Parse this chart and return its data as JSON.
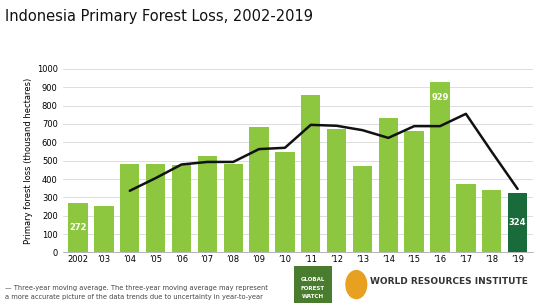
{
  "title": "Indonesia Primary Forest Loss, 2002-2019",
  "years": [
    2002,
    2003,
    2004,
    2005,
    2006,
    2007,
    2008,
    2009,
    2010,
    2011,
    2012,
    2013,
    2014,
    2015,
    2016,
    2017,
    2018,
    2019
  ],
  "bar_values": [
    272,
    253,
    483,
    480,
    475,
    523,
    480,
    685,
    545,
    855,
    670,
    473,
    730,
    660,
    929,
    375,
    340,
    324
  ],
  "bar_colors": [
    "#8dc63f",
    "#8dc63f",
    "#8dc63f",
    "#8dc63f",
    "#8dc63f",
    "#8dc63f",
    "#8dc63f",
    "#8dc63f",
    "#8dc63f",
    "#8dc63f",
    "#8dc63f",
    "#8dc63f",
    "#8dc63f",
    "#8dc63f",
    "#8dc63f",
    "#8dc63f",
    "#8dc63f",
    "#1a6b3c"
  ],
  "moving_avg": [
    null,
    null,
    336,
    405,
    479,
    493,
    493,
    563,
    570,
    695,
    690,
    666,
    624,
    688,
    688,
    755,
    548,
    346
  ],
  "ylabel": "Primary forest loss (thousand hectares)",
  "ylim": [
    0,
    1000
  ],
  "yticks": [
    0,
    100,
    200,
    300,
    400,
    500,
    600,
    700,
    800,
    900,
    1000
  ],
  "bg_color": "#ffffff",
  "bar_light_green": "#8dc63f",
  "bar_dark_green": "#1a6b3c",
  "line_color": "#111111",
  "legend_text": "— Three-year moving average. The three-year moving average may represent\na more accurate picture of the data trends due to uncertainty in year-to-year",
  "title_fontsize": 10.5,
  "ylabel_fontsize": 6,
  "tick_fontsize": 6,
  "annotation_fontsize": 6,
  "annotations": {
    "0": "272",
    "14": "929",
    "17": "324"
  },
  "annotation_positions": {
    "0": "mid",
    "14": "top",
    "17": "mid"
  }
}
